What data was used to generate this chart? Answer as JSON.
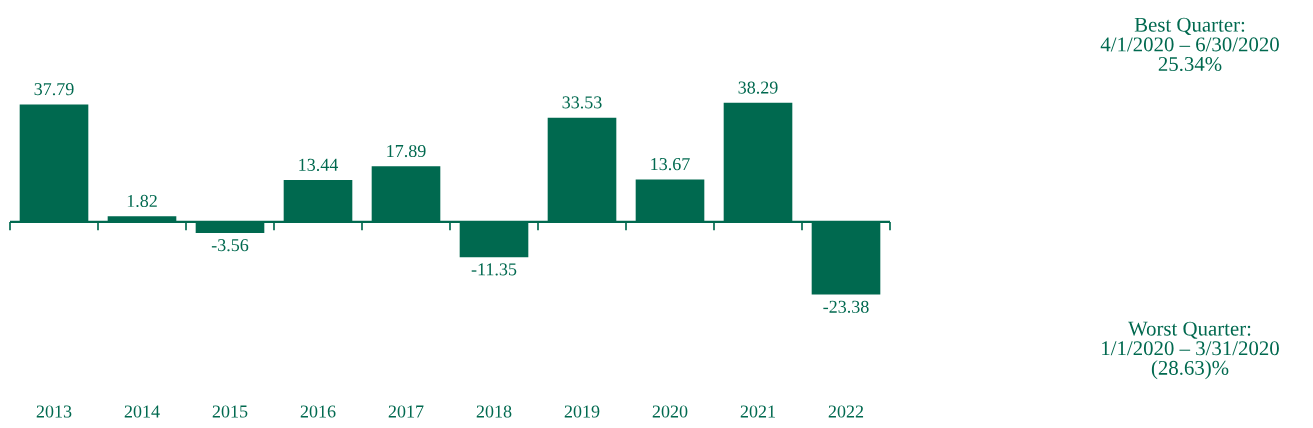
{
  "chart_data": {
    "type": "bar",
    "categories": [
      "2013",
      "2014",
      "2015",
      "2016",
      "2017",
      "2018",
      "2019",
      "2020",
      "2021",
      "2022"
    ],
    "values": [
      37.79,
      1.82,
      -3.56,
      13.44,
      17.89,
      -11.35,
      33.53,
      13.67,
      38.29,
      -23.38
    ],
    "color": "#00694f",
    "data_labels": true,
    "grid": false,
    "ref_lines": [
      {
        "axis": "y",
        "value": 0,
        "color": "#00694f"
      }
    ],
    "legend": false,
    "annotations": [
      "Best Quarter:\n4/1/2020 – 6/30/2020\n25.34%",
      "Worst Quarter:\n1/1/2020 – 3/31/2020\n(28.63)%"
    ]
  }
}
